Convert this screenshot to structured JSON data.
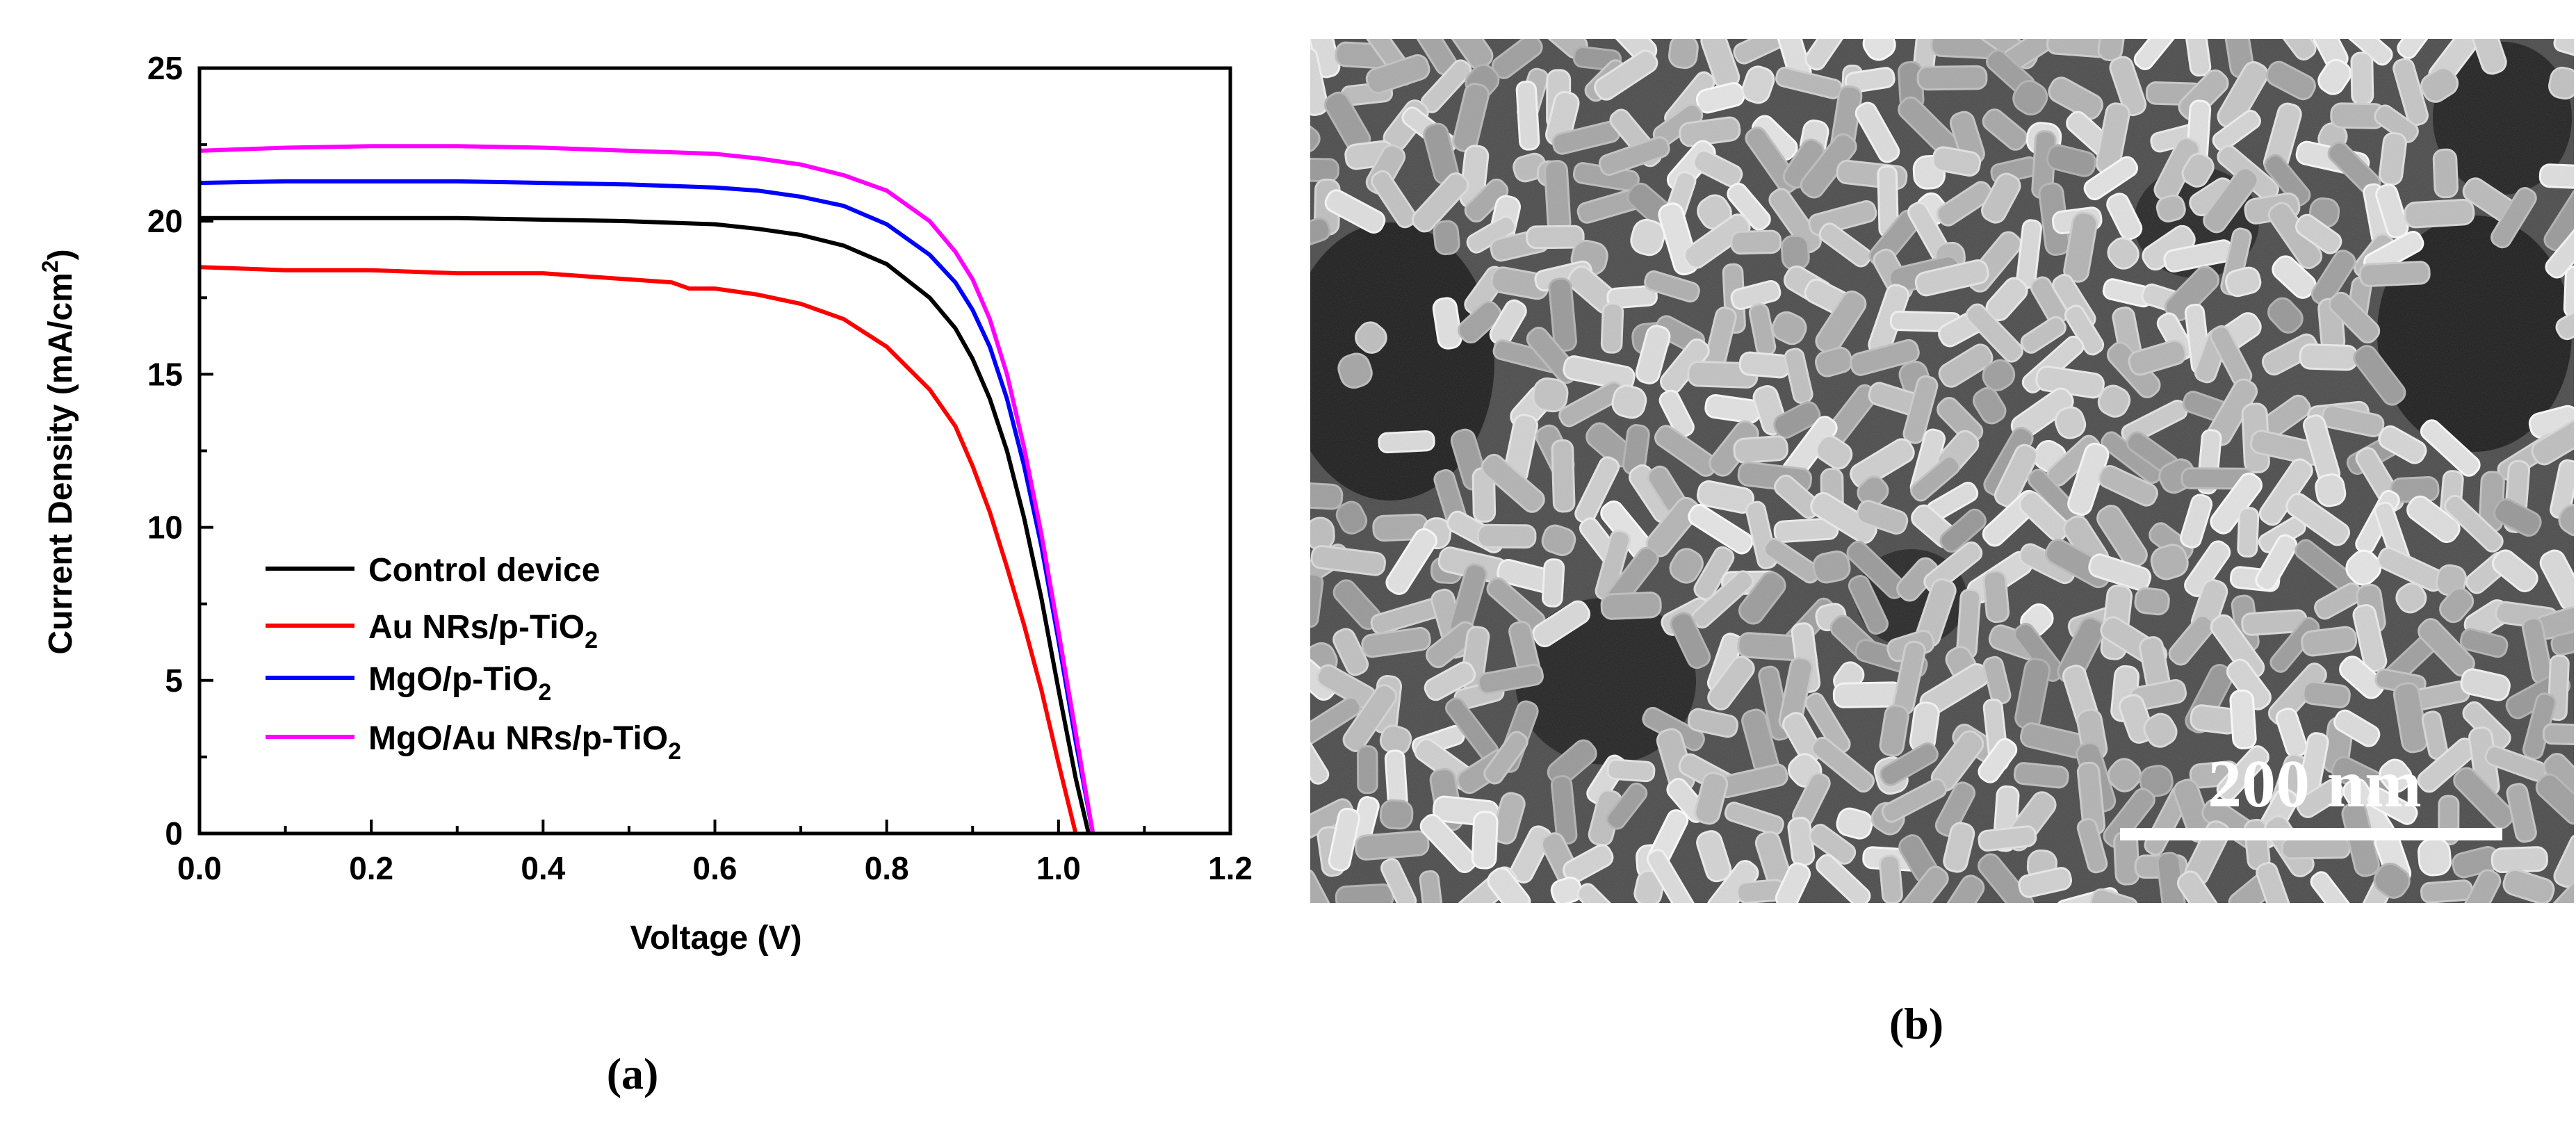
{
  "captions": {
    "a": "(a)",
    "b": "(b)"
  },
  "chart_data": {
    "type": "line",
    "xlabel": "Voltage (V)",
    "ylabel": {
      "main": "Current Density (mA/cm",
      "sup": "2",
      "close": ")"
    },
    "xlim": [
      0.0,
      1.2
    ],
    "ylim": [
      0,
      25
    ],
    "xticks": [
      "0.0",
      "0.2",
      "0.4",
      "0.6",
      "0.8",
      "1.0",
      "1.2"
    ],
    "yticks": [
      "0",
      "5",
      "10",
      "15",
      "20",
      "25"
    ],
    "grid": false,
    "legend_position": "lower-left",
    "series": [
      {
        "name": "Control device",
        "legend": {
          "main": "Control device",
          "sub": ""
        },
        "color": "#000000",
        "x": [
          0.0,
          0.1,
          0.2,
          0.3,
          0.4,
          0.5,
          0.6,
          0.65,
          0.7,
          0.75,
          0.8,
          0.85,
          0.88,
          0.9,
          0.92,
          0.94,
          0.96,
          0.98,
          1.0,
          1.02,
          1.035
        ],
        "y": [
          20.1,
          20.1,
          20.1,
          20.1,
          20.05,
          20.0,
          19.9,
          19.75,
          19.55,
          19.2,
          18.6,
          17.5,
          16.5,
          15.5,
          14.2,
          12.5,
          10.3,
          7.7,
          4.7,
          1.8,
          0
        ]
      },
      {
        "name": "Au NRs/p-TiO2",
        "legend": {
          "main": "Au NRs/p-TiO",
          "sub": "2"
        },
        "color": "#ff0000",
        "x": [
          0.0,
          0.1,
          0.2,
          0.3,
          0.4,
          0.5,
          0.55,
          0.57,
          0.6,
          0.65,
          0.7,
          0.75,
          0.8,
          0.85,
          0.88,
          0.9,
          0.92,
          0.94,
          0.96,
          0.98,
          1.0,
          1.02
        ],
        "y": [
          18.5,
          18.4,
          18.4,
          18.3,
          18.3,
          18.1,
          18.0,
          17.8,
          17.8,
          17.6,
          17.3,
          16.8,
          15.9,
          14.5,
          13.3,
          12.0,
          10.5,
          8.7,
          6.8,
          4.7,
          2.3,
          0
        ]
      },
      {
        "name": "MgO/p-TiO2",
        "legend": {
          "main": "MgO/p-TiO",
          "sub": "2"
        },
        "color": "#0000ff",
        "x": [
          0.0,
          0.1,
          0.2,
          0.3,
          0.4,
          0.5,
          0.6,
          0.65,
          0.7,
          0.75,
          0.8,
          0.85,
          0.88,
          0.9,
          0.92,
          0.94,
          0.96,
          0.98,
          1.0,
          1.02,
          1.04
        ],
        "y": [
          21.25,
          21.3,
          21.3,
          21.3,
          21.25,
          21.2,
          21.1,
          21.0,
          20.8,
          20.5,
          19.9,
          18.9,
          18.0,
          17.1,
          15.9,
          14.2,
          12.0,
          9.4,
          6.3,
          3.0,
          0
        ]
      },
      {
        "name": "MgO/Au NRs/p-TiO2",
        "legend": {
          "main": "MgO/Au NRs/p-TiO",
          "sub": "2"
        },
        "color": "#ff00ff",
        "x": [
          0.0,
          0.1,
          0.2,
          0.3,
          0.4,
          0.5,
          0.6,
          0.65,
          0.7,
          0.75,
          0.8,
          0.85,
          0.88,
          0.9,
          0.92,
          0.94,
          0.96,
          0.98,
          1.0,
          1.02,
          1.04
        ],
        "y": [
          22.3,
          22.4,
          22.45,
          22.45,
          22.4,
          22.3,
          22.2,
          22.05,
          21.85,
          21.5,
          21.0,
          20.0,
          19.0,
          18.1,
          16.8,
          15.0,
          12.6,
          9.8,
          6.6,
          3.3,
          0
        ]
      }
    ]
  },
  "sem_image": {
    "scale_bar_label": "200 nm"
  }
}
